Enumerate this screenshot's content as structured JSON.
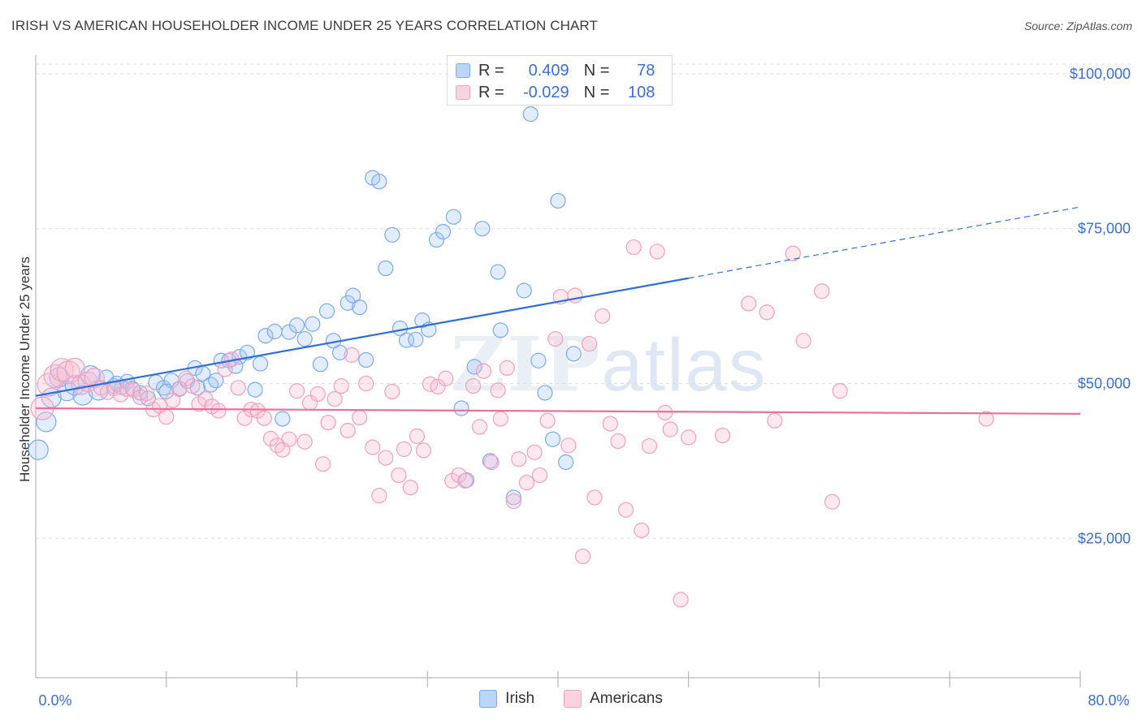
{
  "title": "IRISH VS AMERICAN HOUSEHOLDER INCOME UNDER 25 YEARS CORRELATION CHART",
  "source": "Source: ZipAtlas.com",
  "watermark": {
    "zip": "ZIP",
    "atlas": "atlas"
  },
  "legend": {
    "irish": {
      "r_label": "R =",
      "r_value": "0.409",
      "n_label": "N =",
      "n_value": "78"
    },
    "americans": {
      "r_label": "R =",
      "r_value": "-0.029",
      "n_label": "N =",
      "n_value": "108"
    }
  },
  "bottom_legend": {
    "irish": "Irish",
    "americans": "Americans"
  },
  "chart_data": {
    "type": "scatter",
    "title": "IRISH VS AMERICAN HOUSEHOLDER INCOME UNDER 25 YEARS CORRELATION CHART",
    "xlabel": "",
    "ylabel": "Householder Income Under 25 years",
    "xlim": [
      0,
      80
    ],
    "ylim": [
      2500,
      103000
    ],
    "x_tick_labels": [
      "0.0%",
      "80.0%"
    ],
    "y_ticks": [
      25000,
      50000,
      75000,
      100000
    ],
    "y_tick_labels": [
      "$25,000",
      "$50,000",
      "$75,000",
      "$100,000"
    ],
    "grid": true,
    "colors": {
      "irish": "#7aaaf0",
      "irish_line": "#2f6fd6",
      "americans": "#f2a0bc",
      "americans_line": "#e8709a",
      "tick_text": "#3a6fd8"
    },
    "series": [
      {
        "name": "Irish",
        "trend": {
          "x0": 0,
          "y0": 48000,
          "x1": 50,
          "y1": 67000,
          "dashed_to_x": 80,
          "dashed_to_y": 78500
        },
        "points": [
          [
            0.2,
            39300
          ],
          [
            0.8,
            43800
          ],
          [
            1.2,
            47700
          ],
          [
            1.8,
            51000
          ],
          [
            2.4,
            48800
          ],
          [
            3.0,
            49700
          ],
          [
            3.6,
            48100
          ],
          [
            4.2,
            51300
          ],
          [
            4.8,
            48900
          ],
          [
            5.4,
            51000
          ],
          [
            6.0,
            49600
          ],
          [
            6.6,
            49400
          ],
          [
            7.0,
            50300
          ],
          [
            7.4,
            49200
          ],
          [
            8.0,
            48500
          ],
          [
            8.6,
            47600
          ],
          [
            9.2,
            50200
          ],
          [
            9.8,
            49300
          ],
          [
            10.4,
            50500
          ],
          [
            11.0,
            49100
          ],
          [
            11.6,
            50400
          ],
          [
            12.2,
            52500
          ],
          [
            12.8,
            51600
          ],
          [
            13.4,
            49800
          ],
          [
            13.8,
            50500
          ],
          [
            14.2,
            53700
          ],
          [
            14.8,
            53700
          ],
          [
            15.6,
            54300
          ],
          [
            16.2,
            55000
          ],
          [
            16.8,
            49000
          ],
          [
            17.2,
            53200
          ],
          [
            17.6,
            57700
          ],
          [
            18.3,
            58400
          ],
          [
            18.9,
            44300
          ],
          [
            19.4,
            58300
          ],
          [
            20.0,
            59400
          ],
          [
            20.6,
            57200
          ],
          [
            21.2,
            59600
          ],
          [
            21.8,
            53100
          ],
          [
            22.3,
            61700
          ],
          [
            22.8,
            56900
          ],
          [
            23.3,
            55000
          ],
          [
            23.9,
            63000
          ],
          [
            24.3,
            64200
          ],
          [
            24.8,
            62300
          ],
          [
            25.3,
            53800
          ],
          [
            25.8,
            83200
          ],
          [
            26.3,
            82600
          ],
          [
            26.8,
            68600
          ],
          [
            27.3,
            74000
          ],
          [
            27.9,
            58900
          ],
          [
            28.4,
            57000
          ],
          [
            29.1,
            57100
          ],
          [
            29.6,
            60200
          ],
          [
            30.1,
            58700
          ],
          [
            30.7,
            73200
          ],
          [
            31.2,
            74500
          ],
          [
            32.0,
            76900
          ],
          [
            32.6,
            46000
          ],
          [
            33.0,
            34400
          ],
          [
            33.6,
            52700
          ],
          [
            34.2,
            75000
          ],
          [
            34.8,
            37500
          ],
          [
            35.4,
            68000
          ],
          [
            35.6,
            58600
          ],
          [
            36.6,
            31600
          ],
          [
            37.4,
            65000
          ],
          [
            37.9,
            93500
          ],
          [
            38.5,
            53700
          ],
          [
            39.0,
            48500
          ],
          [
            39.6,
            41000
          ],
          [
            40.0,
            79500
          ],
          [
            40.6,
            37300
          ],
          [
            41.2,
            54800
          ],
          [
            6.2,
            50000
          ],
          [
            10.0,
            48700
          ],
          [
            15.3,
            52800
          ],
          [
            12.4,
            49300
          ]
        ]
      },
      {
        "name": "Americans",
        "trend": {
          "x0": 0,
          "y0": 46000,
          "x1": 80,
          "y1": 45100
        },
        "points": [
          [
            0.5,
            46000
          ],
          [
            1.0,
            49800
          ],
          [
            1.5,
            51200
          ],
          [
            2.0,
            52200
          ],
          [
            2.5,
            51800
          ],
          [
            3.0,
            52500
          ],
          [
            3.5,
            49800
          ],
          [
            4.0,
            50300
          ],
          [
            4.5,
            50900
          ],
          [
            5.0,
            49300
          ],
          [
            5.5,
            48600
          ],
          [
            6.0,
            49200
          ],
          [
            6.5,
            48200
          ],
          [
            7.0,
            49100
          ],
          [
            7.5,
            48900
          ],
          [
            8.0,
            47800
          ],
          [
            8.5,
            48400
          ],
          [
            9.0,
            45800
          ],
          [
            9.5,
            46400
          ],
          [
            10.0,
            44600
          ],
          [
            10.5,
            47300
          ],
          [
            11.0,
            49200
          ],
          [
            11.5,
            50800
          ],
          [
            12.0,
            49600
          ],
          [
            12.5,
            46700
          ],
          [
            13.0,
            47500
          ],
          [
            13.5,
            46300
          ],
          [
            14.0,
            45600
          ],
          [
            14.5,
            52300
          ],
          [
            15.0,
            53900
          ],
          [
            15.5,
            49300
          ],
          [
            16.0,
            44400
          ],
          [
            16.5,
            45800
          ],
          [
            17.0,
            45600
          ],
          [
            17.5,
            44400
          ],
          [
            18.0,
            41100
          ],
          [
            18.5,
            40000
          ],
          [
            18.9,
            39300
          ],
          [
            19.4,
            41000
          ],
          [
            20.0,
            48800
          ],
          [
            20.6,
            40600
          ],
          [
            21.0,
            46900
          ],
          [
            21.6,
            48300
          ],
          [
            22.0,
            37000
          ],
          [
            22.4,
            43700
          ],
          [
            22.9,
            47500
          ],
          [
            23.4,
            49600
          ],
          [
            23.9,
            42400
          ],
          [
            24.2,
            54600
          ],
          [
            24.8,
            44500
          ],
          [
            25.3,
            50000
          ],
          [
            25.8,
            39700
          ],
          [
            26.3,
            31900
          ],
          [
            26.8,
            38000
          ],
          [
            27.3,
            48700
          ],
          [
            27.8,
            35200
          ],
          [
            28.2,
            39400
          ],
          [
            28.7,
            33200
          ],
          [
            29.2,
            41500
          ],
          [
            29.7,
            39200
          ],
          [
            30.2,
            49900
          ],
          [
            30.8,
            49500
          ],
          [
            31.4,
            50800
          ],
          [
            31.9,
            34300
          ],
          [
            32.4,
            35200
          ],
          [
            32.9,
            34300
          ],
          [
            33.5,
            49600
          ],
          [
            34.0,
            43000
          ],
          [
            34.3,
            52000
          ],
          [
            34.9,
            37300
          ],
          [
            35.6,
            44300
          ],
          [
            36.1,
            52500
          ],
          [
            36.6,
            31000
          ],
          [
            37.0,
            37800
          ],
          [
            37.6,
            34000
          ],
          [
            38.2,
            38900
          ],
          [
            38.6,
            35200
          ],
          [
            39.2,
            44000
          ],
          [
            39.8,
            57200
          ],
          [
            40.2,
            64000
          ],
          [
            40.8,
            40000
          ],
          [
            41.3,
            64200
          ],
          [
            41.9,
            22100
          ],
          [
            42.4,
            56400
          ],
          [
            42.8,
            31600
          ],
          [
            43.4,
            60900
          ],
          [
            44.0,
            43500
          ],
          [
            44.6,
            40700
          ],
          [
            45.2,
            29600
          ],
          [
            45.8,
            72000
          ],
          [
            46.4,
            26300
          ],
          [
            47.0,
            39900
          ],
          [
            47.6,
            71300
          ],
          [
            48.2,
            45300
          ],
          [
            48.6,
            42600
          ],
          [
            49.4,
            15100
          ],
          [
            50.0,
            41300
          ],
          [
            52.6,
            41600
          ],
          [
            54.6,
            62900
          ],
          [
            56.0,
            61500
          ],
          [
            56.6,
            44000
          ],
          [
            58.0,
            71000
          ],
          [
            58.8,
            56900
          ],
          [
            60.2,
            64900
          ],
          [
            61.0,
            30900
          ],
          [
            61.6,
            48800
          ],
          [
            72.8,
            44300
          ],
          [
            35.4,
            48900
          ]
        ]
      }
    ]
  }
}
